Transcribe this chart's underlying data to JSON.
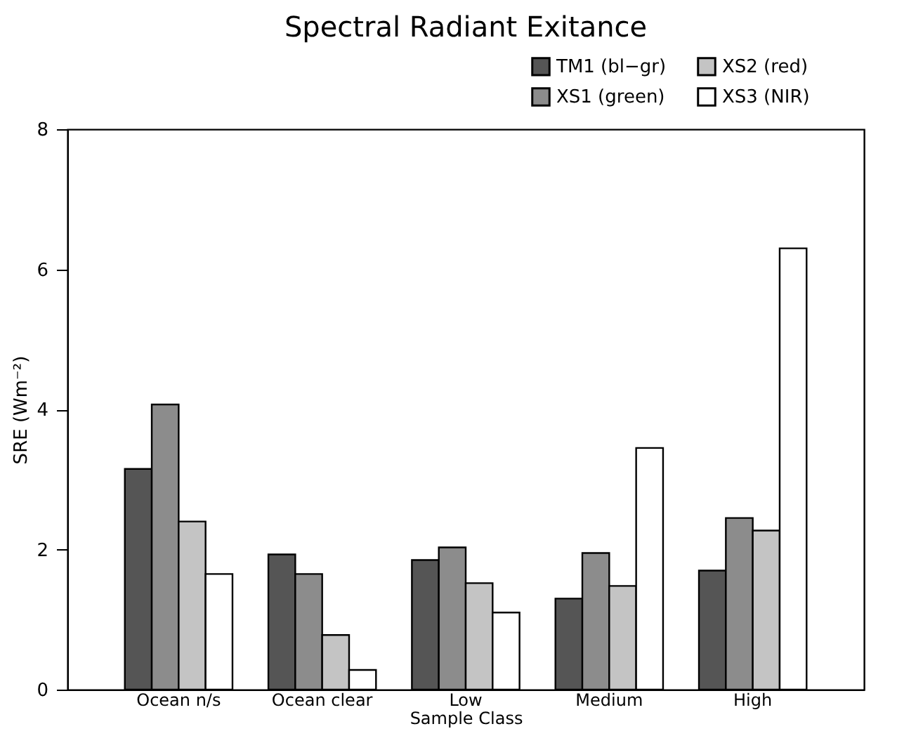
{
  "chart_data": {
    "type": "bar",
    "title": "Spectral Radiant Exitance",
    "xlabel": "Sample Class",
    "ylabel": "SRE (Wm⁻²)",
    "categories": [
      "Ocean n/s",
      "Ocean clear",
      "Low",
      "Medium",
      "High"
    ],
    "series": [
      {
        "name": "TM1 (bl−gr)",
        "color": "#555555",
        "values": [
          3.15,
          1.93,
          1.85,
          1.3,
          1.7
        ]
      },
      {
        "name": "XS1 (green)",
        "color": "#8c8c8c",
        "values": [
          4.07,
          1.65,
          2.03,
          1.95,
          2.45
        ]
      },
      {
        "name": "XS2 (red)",
        "color": "#c4c4c4",
        "values": [
          2.4,
          0.78,
          1.52,
          1.48,
          2.27
        ]
      },
      {
        "name": "XS3 (NIR)",
        "color": "#ffffff",
        "values": [
          1.65,
          0.28,
          1.1,
          3.45,
          6.3
        ]
      }
    ],
    "ylim": [
      0,
      8
    ],
    "yticks": [
      0,
      2,
      4,
      6,
      8
    ],
    "grid": false,
    "legend": "top right"
  }
}
